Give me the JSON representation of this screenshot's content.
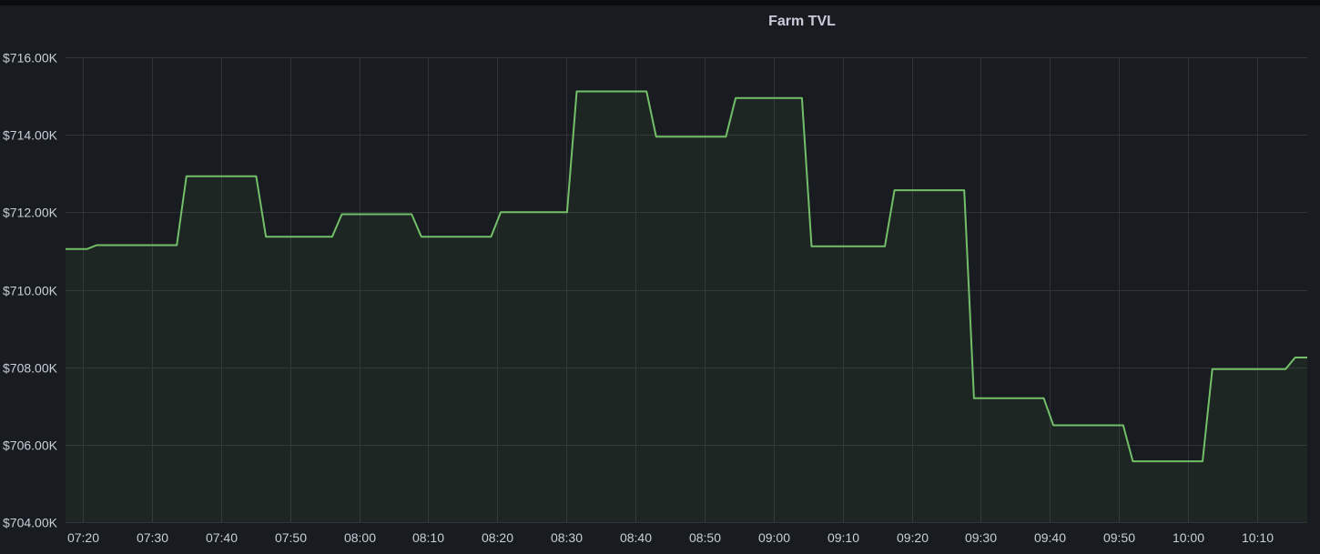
{
  "panel": {
    "title": "Farm TVL"
  },
  "colors": {
    "background": "#181b1f",
    "grid": "#2f3237",
    "series_line": "#73bf69",
    "series_fill": "#73bf69",
    "axis_text": "#c7d0d9"
  },
  "chart_data": {
    "type": "area",
    "title": "Farm TVL",
    "xlabel": "",
    "ylabel": "",
    "interpolation": "step",
    "grid": true,
    "x_ticks": [
      "07:20",
      "07:30",
      "07:40",
      "07:50",
      "08:00",
      "08:10",
      "08:20",
      "08:30",
      "08:40",
      "08:50",
      "09:00",
      "09:10",
      "09:20",
      "09:30",
      "09:40",
      "09:50",
      "10:00",
      "10:10"
    ],
    "y_ticks": [
      "$704.00K",
      "$706.00K",
      "$708.00K",
      "$710.00K",
      "$712.00K",
      "$714.00K",
      "$716.00K"
    ],
    "xlim": [
      "07:17:30",
      "10:17:15"
    ],
    "ylim": [
      704000,
      716000
    ],
    "series": [
      {
        "points": [
          {
            "x": "07:17:30",
            "y": 711050
          },
          {
            "x": "07:22:00",
            "y": 711150
          },
          {
            "x": "07:35:00",
            "y": 712930
          },
          {
            "x": "07:46:30",
            "y": 711370
          },
          {
            "x": "07:57:30",
            "y": 711950
          },
          {
            "x": "08:09:00",
            "y": 711370
          },
          {
            "x": "08:20:30",
            "y": 712000
          },
          {
            "x": "08:31:30",
            "y": 715120
          },
          {
            "x": "08:43:00",
            "y": 713950
          },
          {
            "x": "08:54:30",
            "y": 714950
          },
          {
            "x": "09:05:30",
            "y": 711120
          },
          {
            "x": "09:17:30",
            "y": 712570
          },
          {
            "x": "09:29:00",
            "y": 707200
          },
          {
            "x": "09:40:30",
            "y": 706500
          },
          {
            "x": "09:52:00",
            "y": 705570
          },
          {
            "x": "10:03:30",
            "y": 707950
          },
          {
            "x": "10:15:30",
            "y": 708250
          }
        ]
      }
    ]
  }
}
